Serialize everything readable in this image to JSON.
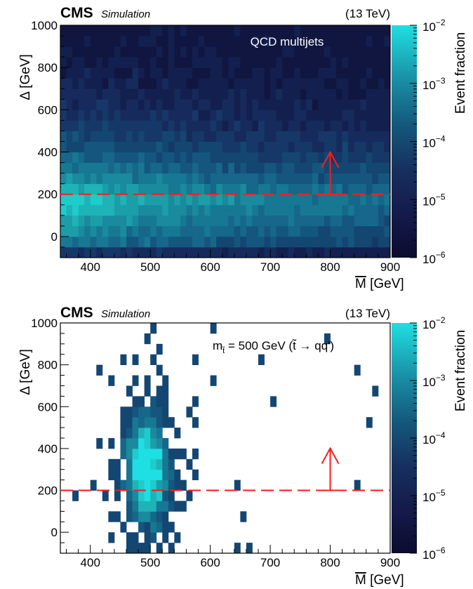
{
  "chart_data": [
    {
      "type": "heatmap",
      "experiment": "CMS",
      "status": "Simulation",
      "energy": "(13 TeV)",
      "annotation": "QCD multijets",
      "xlabel": "M̅ [GeV]",
      "xlabel_text": "M",
      "xlabel_unit": " [GeV]",
      "ylabel": "Δ [GeV]",
      "zlabel": "Event fraction",
      "xlim": [
        350,
        900
      ],
      "ylim": [
        -100,
        1000
      ],
      "xticks": [
        400,
        500,
        600,
        700,
        800,
        900
      ],
      "yticks": [
        0,
        200,
        400,
        600,
        800,
        1000
      ],
      "zscale": "log",
      "zlim": [
        1e-06,
        0.01
      ],
      "zticks": [
        "10^-2",
        "10^-3",
        "10^-4",
        "10^-5",
        "10^-6"
      ],
      "cut_line_y": 200,
      "arrow_x": 800,
      "description_of_distribution": "QCD background spread broadly at low Delta, peaking near Delta 100-250 and low M, falling with increasing Delta and M"
    },
    {
      "type": "heatmap",
      "experiment": "CMS",
      "status": "Simulation",
      "energy": "(13 TeV)",
      "annotation_main": "m",
      "annotation_sub": "t̃",
      "annotation_rest": " = 500 GeV (t̃ → qq')",
      "xlabel": "M̅ [GeV]",
      "xlabel_text": "M",
      "xlabel_unit": " [GeV]",
      "ylabel": "Δ [GeV]",
      "zlabel": "Event fraction",
      "xlim": [
        350,
        900
      ],
      "ylim": [
        -100,
        1000
      ],
      "xticks": [
        400,
        500,
        600,
        700,
        800,
        900
      ],
      "yticks": [
        0,
        200,
        400,
        600,
        800,
        1000
      ],
      "zscale": "log",
      "zlim": [
        1e-06,
        0.01
      ],
      "zticks": [
        "10^-2",
        "10^-3",
        "10^-4",
        "10^-5",
        "10^-6"
      ],
      "cut_line_y": 200,
      "arrow_x": 800,
      "description_of_distribution": "Signal concentrated around M near 500 GeV across Delta 0-600, sparse bins elsewhere"
    }
  ],
  "colors": {
    "cut_line": "#ff1a1a",
    "palette_low": "#0b0b2e",
    "palette_high": "#1fdfe2"
  }
}
